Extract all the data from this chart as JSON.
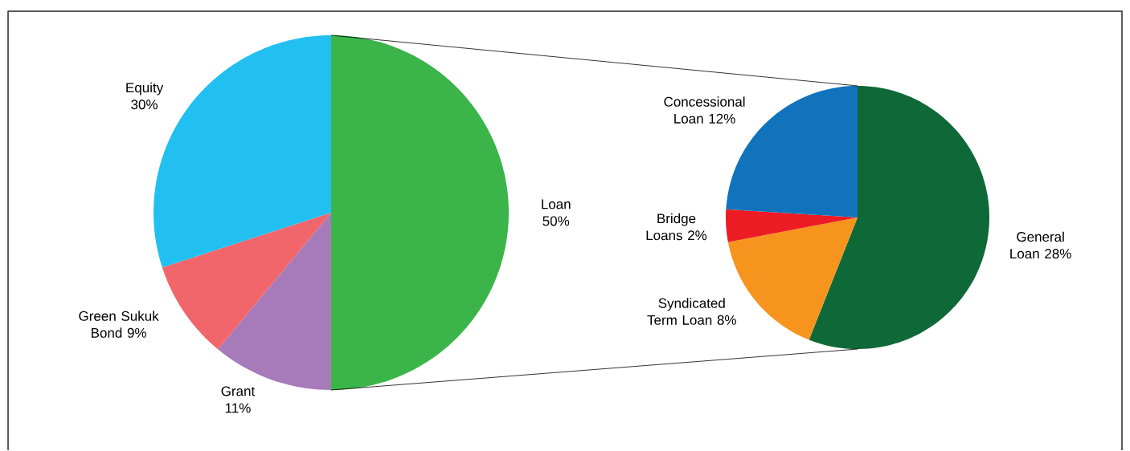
{
  "chart_data": [
    {
      "type": "pie",
      "categories": [
        "Loan",
        "Grant",
        "Green Sukuk Bond",
        "Equity"
      ],
      "values": [
        50,
        11,
        9,
        30
      ],
      "colors": [
        "#3bb54a",
        "#a77bba",
        "#f1666b",
        "#21c0f0"
      ],
      "value_labels": [
        "50%",
        "11%",
        "9%",
        "30%"
      ]
    },
    {
      "type": "pie",
      "categories": [
        "General Loan",
        "Syndicated Term Loan",
        "Bridge Loans",
        "Concessional Loan"
      ],
      "values": [
        28,
        8,
        2,
        12
      ],
      "colors": [
        "#0e6838",
        "#f7941d",
        "#ed1c24",
        "#1173bb"
      ],
      "value_labels": [
        "28%",
        "8%",
        "2%",
        "12%"
      ]
    }
  ]
}
